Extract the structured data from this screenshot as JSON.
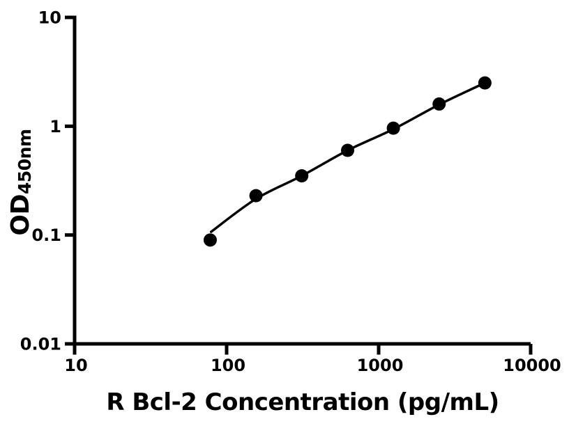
{
  "figure": {
    "background": "#ffffff",
    "ink_color": "#000000"
  },
  "chart_data": {
    "type": "scatter",
    "title": "",
    "xlabel": "R Bcl-2 Concentration (pg/mL)",
    "ylabel": "OD450nm",
    "ylabel_main": "OD",
    "ylabel_sub": "450nm",
    "x_scale": "log",
    "y_scale": "log",
    "xlim": [
      10,
      10000
    ],
    "ylim": [
      0.01,
      10
    ],
    "x_ticks": [
      10,
      100,
      1000,
      10000
    ],
    "x_tick_labels": [
      "10",
      "100",
      "1000",
      "10000"
    ],
    "y_ticks": [
      10,
      1,
      0.1,
      0.01
    ],
    "y_tick_labels": [
      "10",
      "1",
      "0.1",
      "0.01"
    ],
    "grid": false,
    "legend": false,
    "series": [
      {
        "name": "standard-curve-points",
        "marker": "filled-circle",
        "color": "#000000",
        "points": [
          {
            "x": 78,
            "y": 0.09
          },
          {
            "x": 156,
            "y": 0.23
          },
          {
            "x": 312,
            "y": 0.35
          },
          {
            "x": 625,
            "y": 0.6
          },
          {
            "x": 1250,
            "y": 0.96
          },
          {
            "x": 2500,
            "y": 1.6
          },
          {
            "x": 5000,
            "y": 2.5
          }
        ]
      }
    ],
    "fit_curve": {
      "name": "fitted-standard-curve",
      "color": "#000000",
      "points": [
        {
          "x": 79,
          "y": 0.107
        },
        {
          "x": 156,
          "y": 0.215
        },
        {
          "x": 312,
          "y": 0.35
        },
        {
          "x": 625,
          "y": 0.6
        },
        {
          "x": 1250,
          "y": 0.94
        },
        {
          "x": 2500,
          "y": 1.58
        },
        {
          "x": 5000,
          "y": 2.5
        }
      ]
    }
  }
}
